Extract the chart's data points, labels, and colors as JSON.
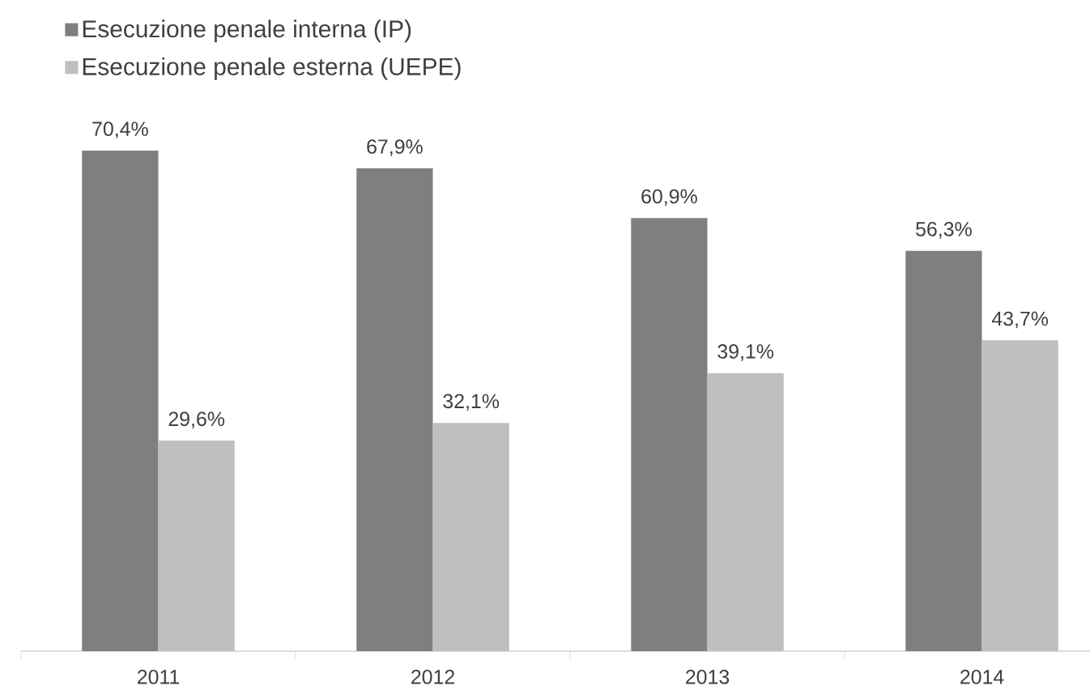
{
  "chart_data": {
    "type": "bar",
    "categories": [
      "2011",
      "2012",
      "2013",
      "2014"
    ],
    "series": [
      {
        "name": "Esecuzione penale interna (IP)",
        "color": "#7f7f7f",
        "values": [
          70.4,
          67.9,
          60.9,
          56.3
        ],
        "value_labels": [
          "70,4%",
          "67,9%",
          "60,9%",
          "56,3%"
        ]
      },
      {
        "name": "Esecuzione penale esterna (UEPE)",
        "color": "#bfbfbf",
        "values": [
          29.6,
          32.1,
          39.1,
          43.7
        ],
        "value_labels": [
          "29,6%",
          "32,1%",
          "39,1%",
          "43,7%"
        ]
      }
    ],
    "legend": "top left",
    "tick_labels": "x"
  }
}
